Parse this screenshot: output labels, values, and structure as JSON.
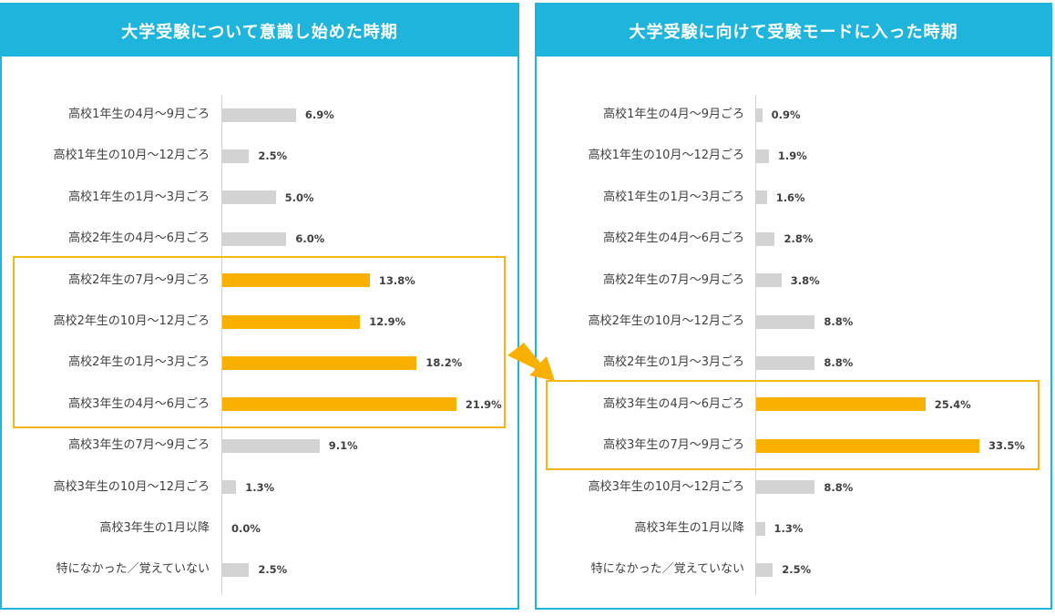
{
  "colors": {
    "header": "#1fb4dc",
    "highlight_bar": "#f9b000",
    "normal_bar": "#d3d3d3",
    "highlight_border": "#f2b619",
    "arrow": "#f9b000"
  },
  "chart_data": [
    {
      "type": "bar",
      "orientation": "horizontal",
      "title": "大学受験について意識し始めた時期",
      "categories": [
        "高校1年生の4月～9月ごろ",
        "高校1年生の10月～12月ごろ",
        "高校1年生の1月～3月ごろ",
        "高校2年生の4月～6月ごろ",
        "高校2年生の7月～9月ごろ",
        "高校2年生の10月～12月ごろ",
        "高校2年生の1月～3月ごろ",
        "高校3年生の4月～6月ごろ",
        "高校3年生の7月～9月ごろ",
        "高校3年生の10月～12月ごろ",
        "高校3年生の1月以降",
        "特になかった／覚えていない"
      ],
      "values": [
        6.9,
        2.5,
        5.0,
        6.0,
        13.8,
        12.9,
        18.2,
        21.9,
        9.1,
        1.3,
        0.0,
        2.5
      ],
      "value_labels": [
        "6.9%",
        "2.5%",
        "5.0%",
        "6.0%",
        "13.8%",
        "12.9%",
        "18.2%",
        "21.9%",
        "9.1%",
        "1.3%",
        "0.0%",
        "2.5%"
      ],
      "highlighted": [
        4,
        5,
        6,
        7
      ],
      "xlim": [
        0,
        22
      ]
    },
    {
      "type": "bar",
      "orientation": "horizontal",
      "title": "大学受験に向けて受験モードに入った時期",
      "categories": [
        "高校1年生の4月～9月ごろ",
        "高校1年生の10月～12月ごろ",
        "高校1年生の1月～3月ごろ",
        "高校2年生の4月～6月ごろ",
        "高校2年生の7月～9月ごろ",
        "高校2年生の10月～12月ごろ",
        "高校2年生の1月～3月ごろ",
        "高校3年生の4月～6月ごろ",
        "高校3年生の7月～9月ごろ",
        "高校3年生の10月～12月ごろ",
        "高校3年生の1月以降",
        "特になかった／覚えていない"
      ],
      "values": [
        0.9,
        1.9,
        1.6,
        2.8,
        3.8,
        8.8,
        8.8,
        25.4,
        33.5,
        8.8,
        1.3,
        2.5
      ],
      "value_labels": [
        "0.9%",
        "1.9%",
        "1.6%",
        "2.8%",
        "3.8%",
        "8.8%",
        "8.8%",
        "25.4%",
        "33.5%",
        "8.8%",
        "1.3%",
        "2.5%"
      ],
      "highlighted": [
        7,
        8
      ],
      "xlim": [
        0,
        33.5
      ]
    }
  ]
}
